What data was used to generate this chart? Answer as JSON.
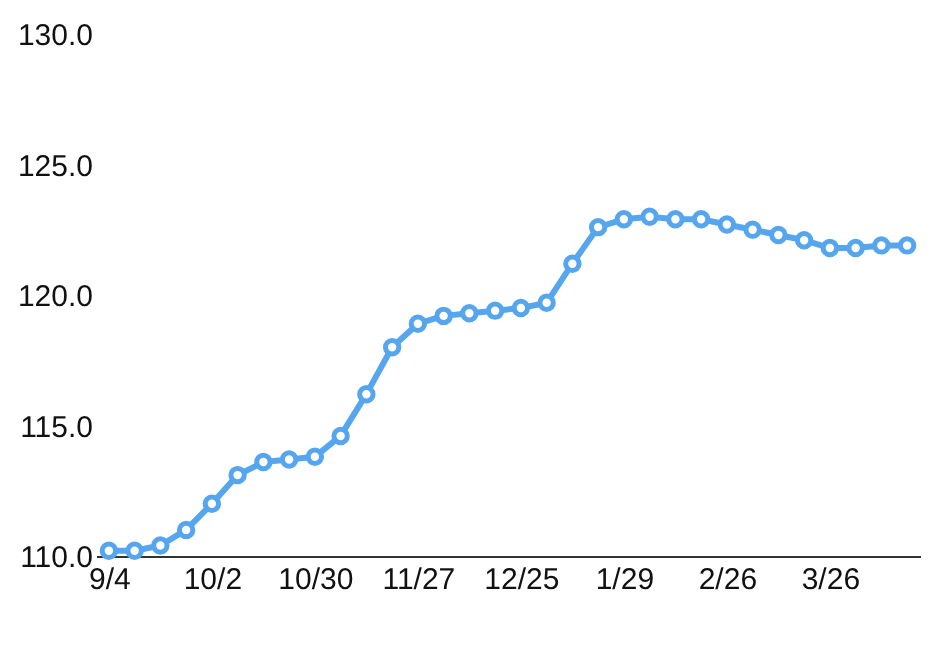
{
  "chart_data": {
    "type": "line",
    "categories": [
      "9/4",
      null,
      null,
      null,
      "10/2",
      null,
      null,
      null,
      "10/30",
      null,
      null,
      null,
      "11/27",
      null,
      null,
      null,
      "12/25",
      null,
      null,
      null,
      "1/29",
      null,
      null,
      null,
      "2/26",
      null,
      null,
      null,
      "3/26",
      null,
      null,
      null
    ],
    "series": [
      {
        "color": "#55a6ee",
        "values": [
          110.2,
          110.2,
          110.4,
          111.0,
          112.0,
          113.1,
          113.6,
          113.7,
          113.8,
          114.6,
          116.2,
          118.0,
          118.9,
          119.2,
          119.3,
          119.4,
          119.5,
          119.7,
          121.2,
          122.6,
          122.9,
          123.0,
          122.9,
          122.9,
          122.7,
          122.5,
          122.3,
          122.1,
          121.8,
          121.8,
          121.9,
          121.9
        ]
      }
    ],
    "ylim": [
      110,
      130
    ],
    "yticks": [
      {
        "value": 110,
        "label": "110.0"
      },
      {
        "value": 115,
        "label": "115.0"
      },
      {
        "value": 120,
        "label": "120.0"
      },
      {
        "value": 125,
        "label": "125.0"
      },
      {
        "value": 130,
        "label": "130.0"
      }
    ],
    "grid": false,
    "marker": "circle",
    "line_style": "solid"
  }
}
